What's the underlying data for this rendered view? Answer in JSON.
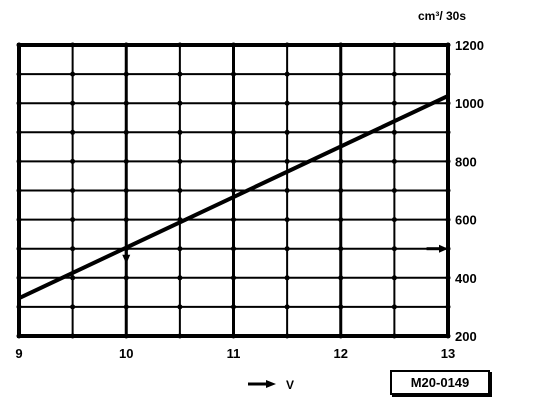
{
  "chart_data": {
    "type": "line",
    "title": "",
    "xlabel": "V",
    "xlabel_superscript": "",
    "ylabel": "cm³/ 30s",
    "ylabel_superscript": "",
    "xlim": [
      9,
      13
    ],
    "ylim": [
      200,
      1200
    ],
    "x_ticks": [
      9,
      10,
      11,
      12,
      13
    ],
    "y_ticks": [
      200,
      400,
      600,
      800,
      1000,
      1200
    ],
    "x_minor_step": 0.5,
    "y_minor_step": 100,
    "grid": true,
    "y_axis_side": "right",
    "series": [
      {
        "x": [
          9,
          13
        ],
        "y": [
          330,
          1025
        ]
      }
    ],
    "annotations": [
      {
        "type": "vertical-arrow",
        "x": 10,
        "from_y": 500,
        "to_y": 455
      },
      {
        "type": "horizontal-arrow",
        "y": 500,
        "from_x": 12.8,
        "to_x": 13.0
      }
    ],
    "colors": {
      "line": "#000000",
      "grid": "#000000",
      "background": "#ffffff"
    }
  },
  "reference": "M20-0149"
}
